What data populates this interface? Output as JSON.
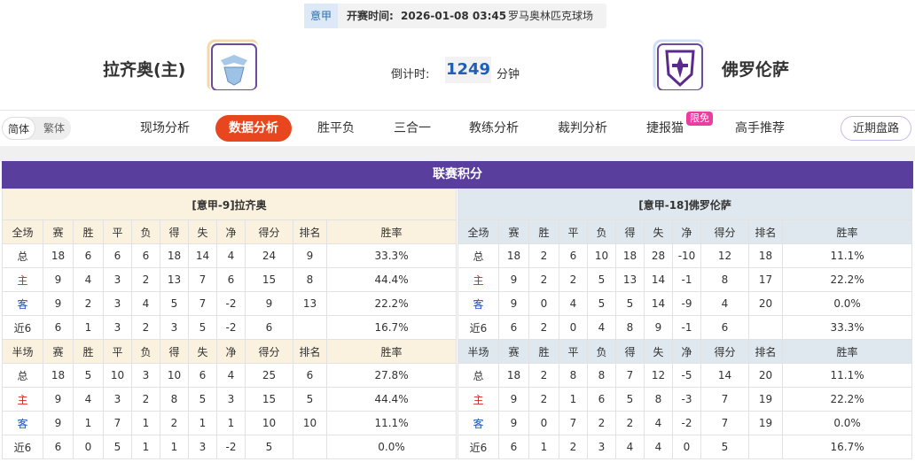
{
  "header": {
    "league": "意甲",
    "kickoff_label": "开赛时间:",
    "kickoff_time": "2026-01-08 03:45",
    "venue": "罗马奥林匹克球场"
  },
  "home_team": "拉齐奥(主)",
  "away_team": "佛罗伦萨",
  "countdown": {
    "label": "倒计时:",
    "value": "1249",
    "unit": "分钟"
  },
  "nav": {
    "scripts": [
      "简体",
      "繁体"
    ],
    "tabs": [
      "现场分析",
      "数据分析",
      "胜平负",
      "三合一",
      "教练分析",
      "裁判分析",
      "捷报猫",
      "高手推荐"
    ],
    "badge": "限免",
    "recent": "近期盘路"
  },
  "section_title": "联赛积分",
  "tables": [
    {
      "title": "[意甲-9]拉齐奥",
      "full_header": [
        "全场",
        "赛",
        "胜",
        "平",
        "负",
        "得",
        "失",
        "净",
        "得分",
        "排名",
        "胜率"
      ],
      "full_rows": [
        [
          "总",
          "18",
          "6",
          "6",
          "6",
          "18",
          "14",
          "4",
          "24",
          "9",
          "33.3%"
        ],
        [
          "主",
          "9",
          "4",
          "3",
          "2",
          "13",
          "7",
          "6",
          "15",
          "8",
          "44.4%"
        ],
        [
          "客",
          "9",
          "2",
          "3",
          "4",
          "5",
          "7",
          "-2",
          "9",
          "13",
          "22.2%"
        ],
        [
          "近6",
          "6",
          "1",
          "3",
          "2",
          "3",
          "5",
          "-2",
          "6",
          null,
          "16.7%"
        ]
      ],
      "half_header": [
        "半场",
        "赛",
        "胜",
        "平",
        "负",
        "得",
        "失",
        "净",
        "得分",
        "排名",
        "胜率"
      ],
      "half_rows": [
        [
          "总",
          "18",
          "5",
          "10",
          "3",
          "10",
          "6",
          "4",
          "25",
          "6",
          "27.8%"
        ],
        [
          "主",
          "9",
          "4",
          "3",
          "2",
          "8",
          "5",
          "3",
          "15",
          "5",
          "44.4%"
        ],
        [
          "客",
          "9",
          "1",
          "7",
          "1",
          "2",
          "1",
          "1",
          "10",
          "10",
          "11.1%"
        ],
        [
          "近6",
          "6",
          "0",
          "5",
          "1",
          "1",
          "3",
          "-2",
          "5",
          null,
          "0.0%"
        ]
      ]
    },
    {
      "title": "[意甲-18]佛罗伦萨",
      "full_header": [
        "全场",
        "赛",
        "胜",
        "平",
        "负",
        "得",
        "失",
        "净",
        "得分",
        "排名",
        "胜率"
      ],
      "full_rows": [
        [
          "总",
          "18",
          "2",
          "6",
          "10",
          "18",
          "28",
          "-10",
          "12",
          "18",
          "11.1%"
        ],
        [
          "主",
          "9",
          "2",
          "2",
          "5",
          "13",
          "14",
          "-1",
          "8",
          "17",
          "22.2%"
        ],
        [
          "客",
          "9",
          "0",
          "4",
          "5",
          "5",
          "14",
          "-9",
          "4",
          "20",
          "0.0%"
        ],
        [
          "近6",
          "6",
          "2",
          "0",
          "4",
          "8",
          "9",
          "-1",
          "6",
          null,
          "33.3%"
        ]
      ],
      "half_header": [
        "半场",
        "赛",
        "胜",
        "平",
        "负",
        "得",
        "失",
        "净",
        "得分",
        "排名",
        "胜率"
      ],
      "half_rows": [
        [
          "总",
          "18",
          "2",
          "8",
          "8",
          "7",
          "12",
          "-5",
          "14",
          "20",
          "11.1%"
        ],
        [
          "主",
          "9",
          "2",
          "1",
          "6",
          "5",
          "8",
          "-3",
          "7",
          "19",
          "22.2%"
        ],
        [
          "客",
          "9",
          "0",
          "7",
          "2",
          "2",
          "4",
          "-2",
          "7",
          "19",
          "0.0%"
        ],
        [
          "近6",
          "6",
          "1",
          "2",
          "3",
          "4",
          "4",
          "0",
          "5",
          null,
          "16.7%"
        ]
      ]
    }
  ]
}
